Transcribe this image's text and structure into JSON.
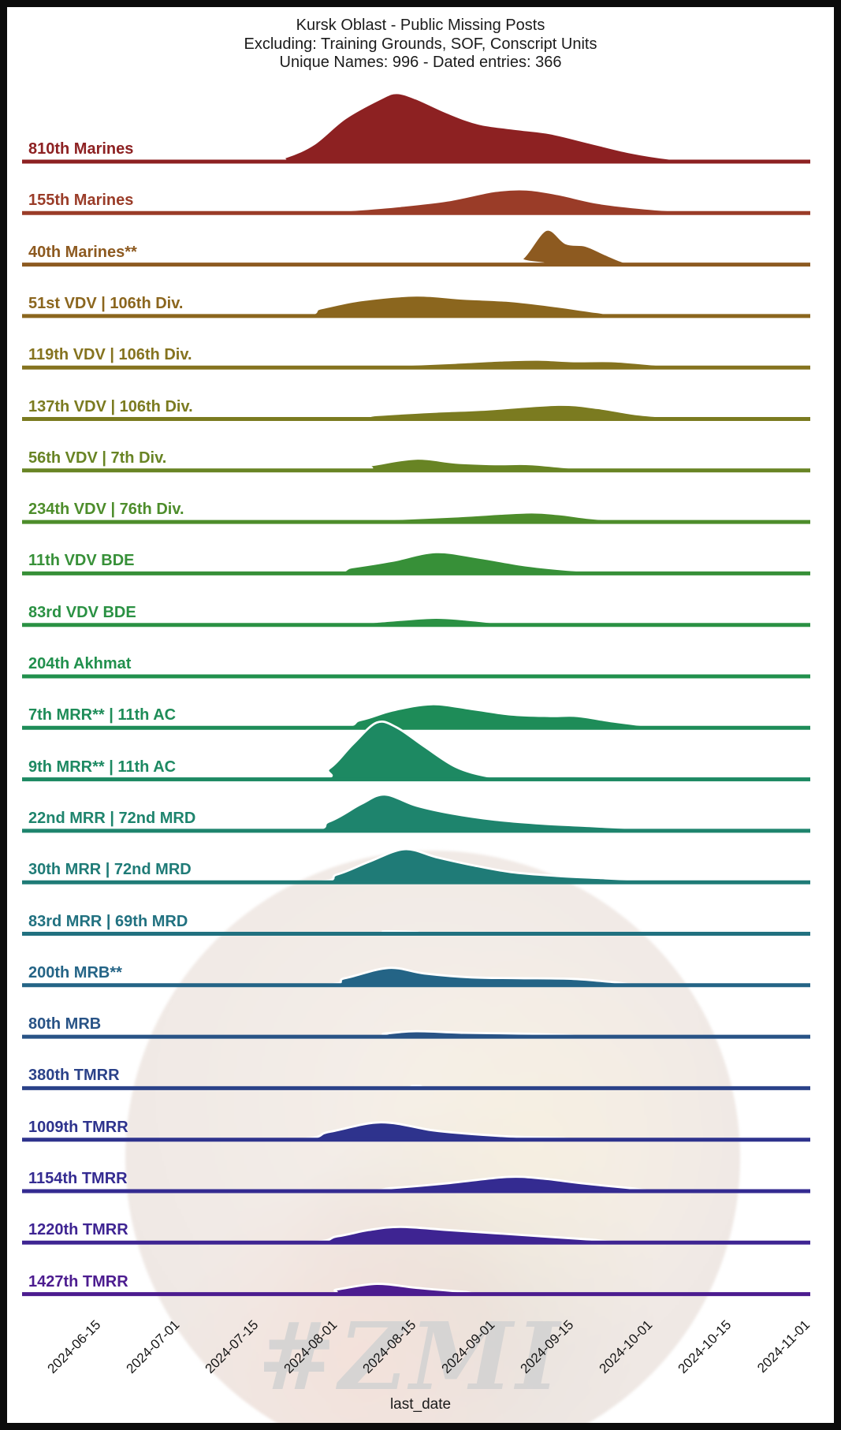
{
  "title": {
    "line1": "Kursk Oblast - Public Missing Posts",
    "line2": "Excluding: Training Grounds, SOF, Conscript Units",
    "line3": "Unique Names: 996 - Dated entries: 366"
  },
  "watermark": {
    "text": "#ZMI"
  },
  "chart_data": {
    "type": "area",
    "subtype": "ridgeline-density",
    "xlabel": "last_date",
    "x_ticks": [
      "2024-06-15",
      "2024-07-01",
      "2024-07-15",
      "2024-08-01",
      "2024-08-15",
      "2024-09-01",
      "2024-09-15",
      "2024-10-01",
      "2024-10-15",
      "2024-11-01"
    ],
    "x_range_note": "densities of missing-post last_date per unit, axis 2024-06 to 2024-11",
    "series": [
      {
        "name": "810th Marines",
        "color": "#8d2122",
        "points": [
          [
            0.3,
            0
          ],
          [
            0.335,
            6
          ],
          [
            0.37,
            22
          ],
          [
            0.41,
            55
          ],
          [
            0.455,
            80
          ],
          [
            0.475,
            87
          ],
          [
            0.5,
            80
          ],
          [
            0.54,
            62
          ],
          [
            0.58,
            48
          ],
          [
            0.63,
            41
          ],
          [
            0.67,
            36
          ],
          [
            0.72,
            24
          ],
          [
            0.77,
            12
          ],
          [
            0.82,
            4
          ],
          [
            0.87,
            0
          ]
        ]
      },
      {
        "name": "155th Marines",
        "color": "#9a3c28",
        "points": [
          [
            0.36,
            0
          ],
          [
            0.42,
            4
          ],
          [
            0.48,
            9
          ],
          [
            0.54,
            16
          ],
          [
            0.6,
            28
          ],
          [
            0.64,
            30
          ],
          [
            0.68,
            24
          ],
          [
            0.73,
            13
          ],
          [
            0.79,
            6
          ],
          [
            0.85,
            2
          ],
          [
            0.91,
            0
          ]
        ]
      },
      {
        "name": "40th Marines**",
        "color": "#8d5a20",
        "points": [
          [
            0.61,
            0
          ],
          [
            0.635,
            8
          ],
          [
            0.665,
            44
          ],
          [
            0.69,
            27
          ],
          [
            0.715,
            24
          ],
          [
            0.74,
            13
          ],
          [
            0.765,
            3
          ],
          [
            0.79,
            0
          ]
        ]
      },
      {
        "name": "51st VDV | 106th Div.",
        "color": "#8b661e",
        "points": [
          [
            0.33,
            0
          ],
          [
            0.38,
            10
          ],
          [
            0.43,
            20
          ],
          [
            0.5,
            26
          ],
          [
            0.56,
            22
          ],
          [
            0.62,
            19
          ],
          [
            0.68,
            12
          ],
          [
            0.73,
            5
          ],
          [
            0.78,
            0
          ]
        ]
      },
      {
        "name": "119th VDV | 106th Div.",
        "color": "#85731f",
        "points": [
          [
            0.42,
            0
          ],
          [
            0.48,
            3
          ],
          [
            0.55,
            6
          ],
          [
            0.61,
            9
          ],
          [
            0.655,
            10
          ],
          [
            0.7,
            8
          ],
          [
            0.75,
            8
          ],
          [
            0.8,
            4
          ],
          [
            0.85,
            0
          ]
        ]
      },
      {
        "name": "137th VDV | 106th Div.",
        "color": "#7b7b20",
        "points": [
          [
            0.39,
            0
          ],
          [
            0.45,
            5
          ],
          [
            0.52,
            9
          ],
          [
            0.59,
            12
          ],
          [
            0.68,
            18
          ],
          [
            0.73,
            14
          ],
          [
            0.78,
            6
          ],
          [
            0.83,
            2
          ],
          [
            0.87,
            0
          ]
        ]
      },
      {
        "name": "56th VDV | 7th Div.",
        "color": "#688424",
        "points": [
          [
            0.4,
            0
          ],
          [
            0.445,
            7
          ],
          [
            0.5,
            15
          ],
          [
            0.55,
            10
          ],
          [
            0.6,
            8
          ],
          [
            0.645,
            8
          ],
          [
            0.7,
            3
          ],
          [
            0.74,
            0
          ]
        ]
      },
      {
        "name": "234th VDV | 76th Div.",
        "color": "#4d8d2b",
        "points": [
          [
            0.38,
            0
          ],
          [
            0.46,
            3
          ],
          [
            0.55,
            7
          ],
          [
            0.64,
            12
          ],
          [
            0.68,
            10
          ],
          [
            0.72,
            5
          ],
          [
            0.77,
            1
          ],
          [
            0.81,
            0
          ]
        ]
      },
      {
        "name": "11th VDV BDE",
        "color": "#379038",
        "points": [
          [
            0.36,
            0
          ],
          [
            0.42,
            8
          ],
          [
            0.47,
            16
          ],
          [
            0.525,
            27
          ],
          [
            0.58,
            20
          ],
          [
            0.64,
            10
          ],
          [
            0.7,
            4
          ],
          [
            0.77,
            0
          ]
        ]
      },
      {
        "name": "83rd VDV BDE",
        "color": "#2a9143",
        "points": [
          [
            0.39,
            0
          ],
          [
            0.45,
            4
          ],
          [
            0.52,
            9
          ],
          [
            0.56,
            7
          ],
          [
            0.6,
            3
          ],
          [
            0.64,
            0
          ]
        ]
      },
      {
        "name": "204th Akhmat",
        "color": "#21904d",
        "points": [
          [
            0.33,
            0
          ],
          [
            0.37,
            5
          ],
          [
            0.41,
            0
          ]
        ]
      },
      {
        "name": "7th MRR** | 11th AC",
        "color": "#1e8c58",
        "points": [
          [
            0.37,
            0
          ],
          [
            0.43,
            10
          ],
          [
            0.47,
            22
          ],
          [
            0.52,
            30
          ],
          [
            0.57,
            24
          ],
          [
            0.62,
            17
          ],
          [
            0.67,
            15
          ],
          [
            0.705,
            15
          ],
          [
            0.75,
            8
          ],
          [
            0.8,
            2
          ],
          [
            0.84,
            0
          ]
        ]
      },
      {
        "name": "9th MRR** | 11th AC",
        "color": "#1d8962",
        "points": [
          [
            0.355,
            0
          ],
          [
            0.39,
            14
          ],
          [
            0.42,
            45
          ],
          [
            0.45,
            72
          ],
          [
            0.475,
            66
          ],
          [
            0.51,
            42
          ],
          [
            0.55,
            16
          ],
          [
            0.59,
            4
          ],
          [
            0.63,
            0
          ],
          [
            0.68,
            1
          ],
          [
            0.71,
            3
          ],
          [
            0.745,
            0
          ]
        ]
      },
      {
        "name": "22nd MRR | 72nd MRD",
        "color": "#1e846d",
        "points": [
          [
            0.34,
            0
          ],
          [
            0.39,
            12
          ],
          [
            0.43,
            34
          ],
          [
            0.46,
            46
          ],
          [
            0.5,
            32
          ],
          [
            0.545,
            22
          ],
          [
            0.6,
            14
          ],
          [
            0.66,
            9
          ],
          [
            0.72,
            6
          ],
          [
            0.78,
            3
          ],
          [
            0.84,
            1
          ],
          [
            0.88,
            0
          ]
        ]
      },
      {
        "name": "30th MRR | 72nd MRD",
        "color": "#1f7b77",
        "points": [
          [
            0.35,
            0
          ],
          [
            0.4,
            10
          ],
          [
            0.44,
            26
          ],
          [
            0.485,
            42
          ],
          [
            0.525,
            32
          ],
          [
            0.57,
            22
          ],
          [
            0.62,
            13
          ],
          [
            0.68,
            8
          ],
          [
            0.74,
            5
          ],
          [
            0.8,
            2
          ],
          [
            0.86,
            0
          ]
        ]
      },
      {
        "name": "83rd MRR | 69th MRD",
        "color": "#217180",
        "points": [
          [
            0.42,
            0
          ],
          [
            0.46,
            3
          ],
          [
            0.5,
            2
          ],
          [
            0.54,
            0
          ]
        ]
      },
      {
        "name": "200th MRB**",
        "color": "#246486",
        "points": [
          [
            0.36,
            0
          ],
          [
            0.41,
            9
          ],
          [
            0.465,
            22
          ],
          [
            0.51,
            15
          ],
          [
            0.57,
            10
          ],
          [
            0.63,
            9
          ],
          [
            0.7,
            8
          ],
          [
            0.75,
            4
          ],
          [
            0.8,
            0
          ]
        ]
      },
      {
        "name": "80th MRB",
        "color": "#285386",
        "points": [
          [
            0.42,
            0
          ],
          [
            0.46,
            4
          ],
          [
            0.5,
            7
          ],
          [
            0.56,
            5
          ],
          [
            0.63,
            4
          ],
          [
            0.69,
            2
          ],
          [
            0.74,
            0
          ]
        ]
      },
      {
        "name": "380th TMRR",
        "color": "#2b4289",
        "points": [
          [
            0.44,
            0
          ],
          [
            0.5,
            3
          ],
          [
            0.56,
            0
          ]
        ]
      },
      {
        "name": "1009th TMRR",
        "color": "#2e338d",
        "points": [
          [
            0.33,
            0
          ],
          [
            0.39,
            10
          ],
          [
            0.455,
            22
          ],
          [
            0.52,
            12
          ],
          [
            0.56,
            8
          ],
          [
            0.62,
            4
          ],
          [
            0.68,
            2
          ],
          [
            0.735,
            0
          ]
        ]
      },
      {
        "name": "1154th TMRR",
        "color": "#342b91",
        "points": [
          [
            0.4,
            0
          ],
          [
            0.47,
            4
          ],
          [
            0.54,
            10
          ],
          [
            0.615,
            18
          ],
          [
            0.66,
            16
          ],
          [
            0.71,
            10
          ],
          [
            0.77,
            4
          ],
          [
            0.82,
            0
          ]
        ]
      },
      {
        "name": "1220th TMRR",
        "color": "#3e2492",
        "points": [
          [
            0.34,
            0
          ],
          [
            0.4,
            8
          ],
          [
            0.44,
            16
          ],
          [
            0.48,
            20
          ],
          [
            0.54,
            16
          ],
          [
            0.6,
            12
          ],
          [
            0.66,
            8
          ],
          [
            0.72,
            4
          ],
          [
            0.78,
            0
          ]
        ]
      },
      {
        "name": "1427th TMRR",
        "color": "#4c1c8f",
        "points": [
          [
            0.36,
            0
          ],
          [
            0.4,
            6
          ],
          [
            0.45,
            13
          ],
          [
            0.5,
            8
          ],
          [
            0.56,
            3
          ],
          [
            0.62,
            0
          ]
        ]
      }
    ]
  }
}
